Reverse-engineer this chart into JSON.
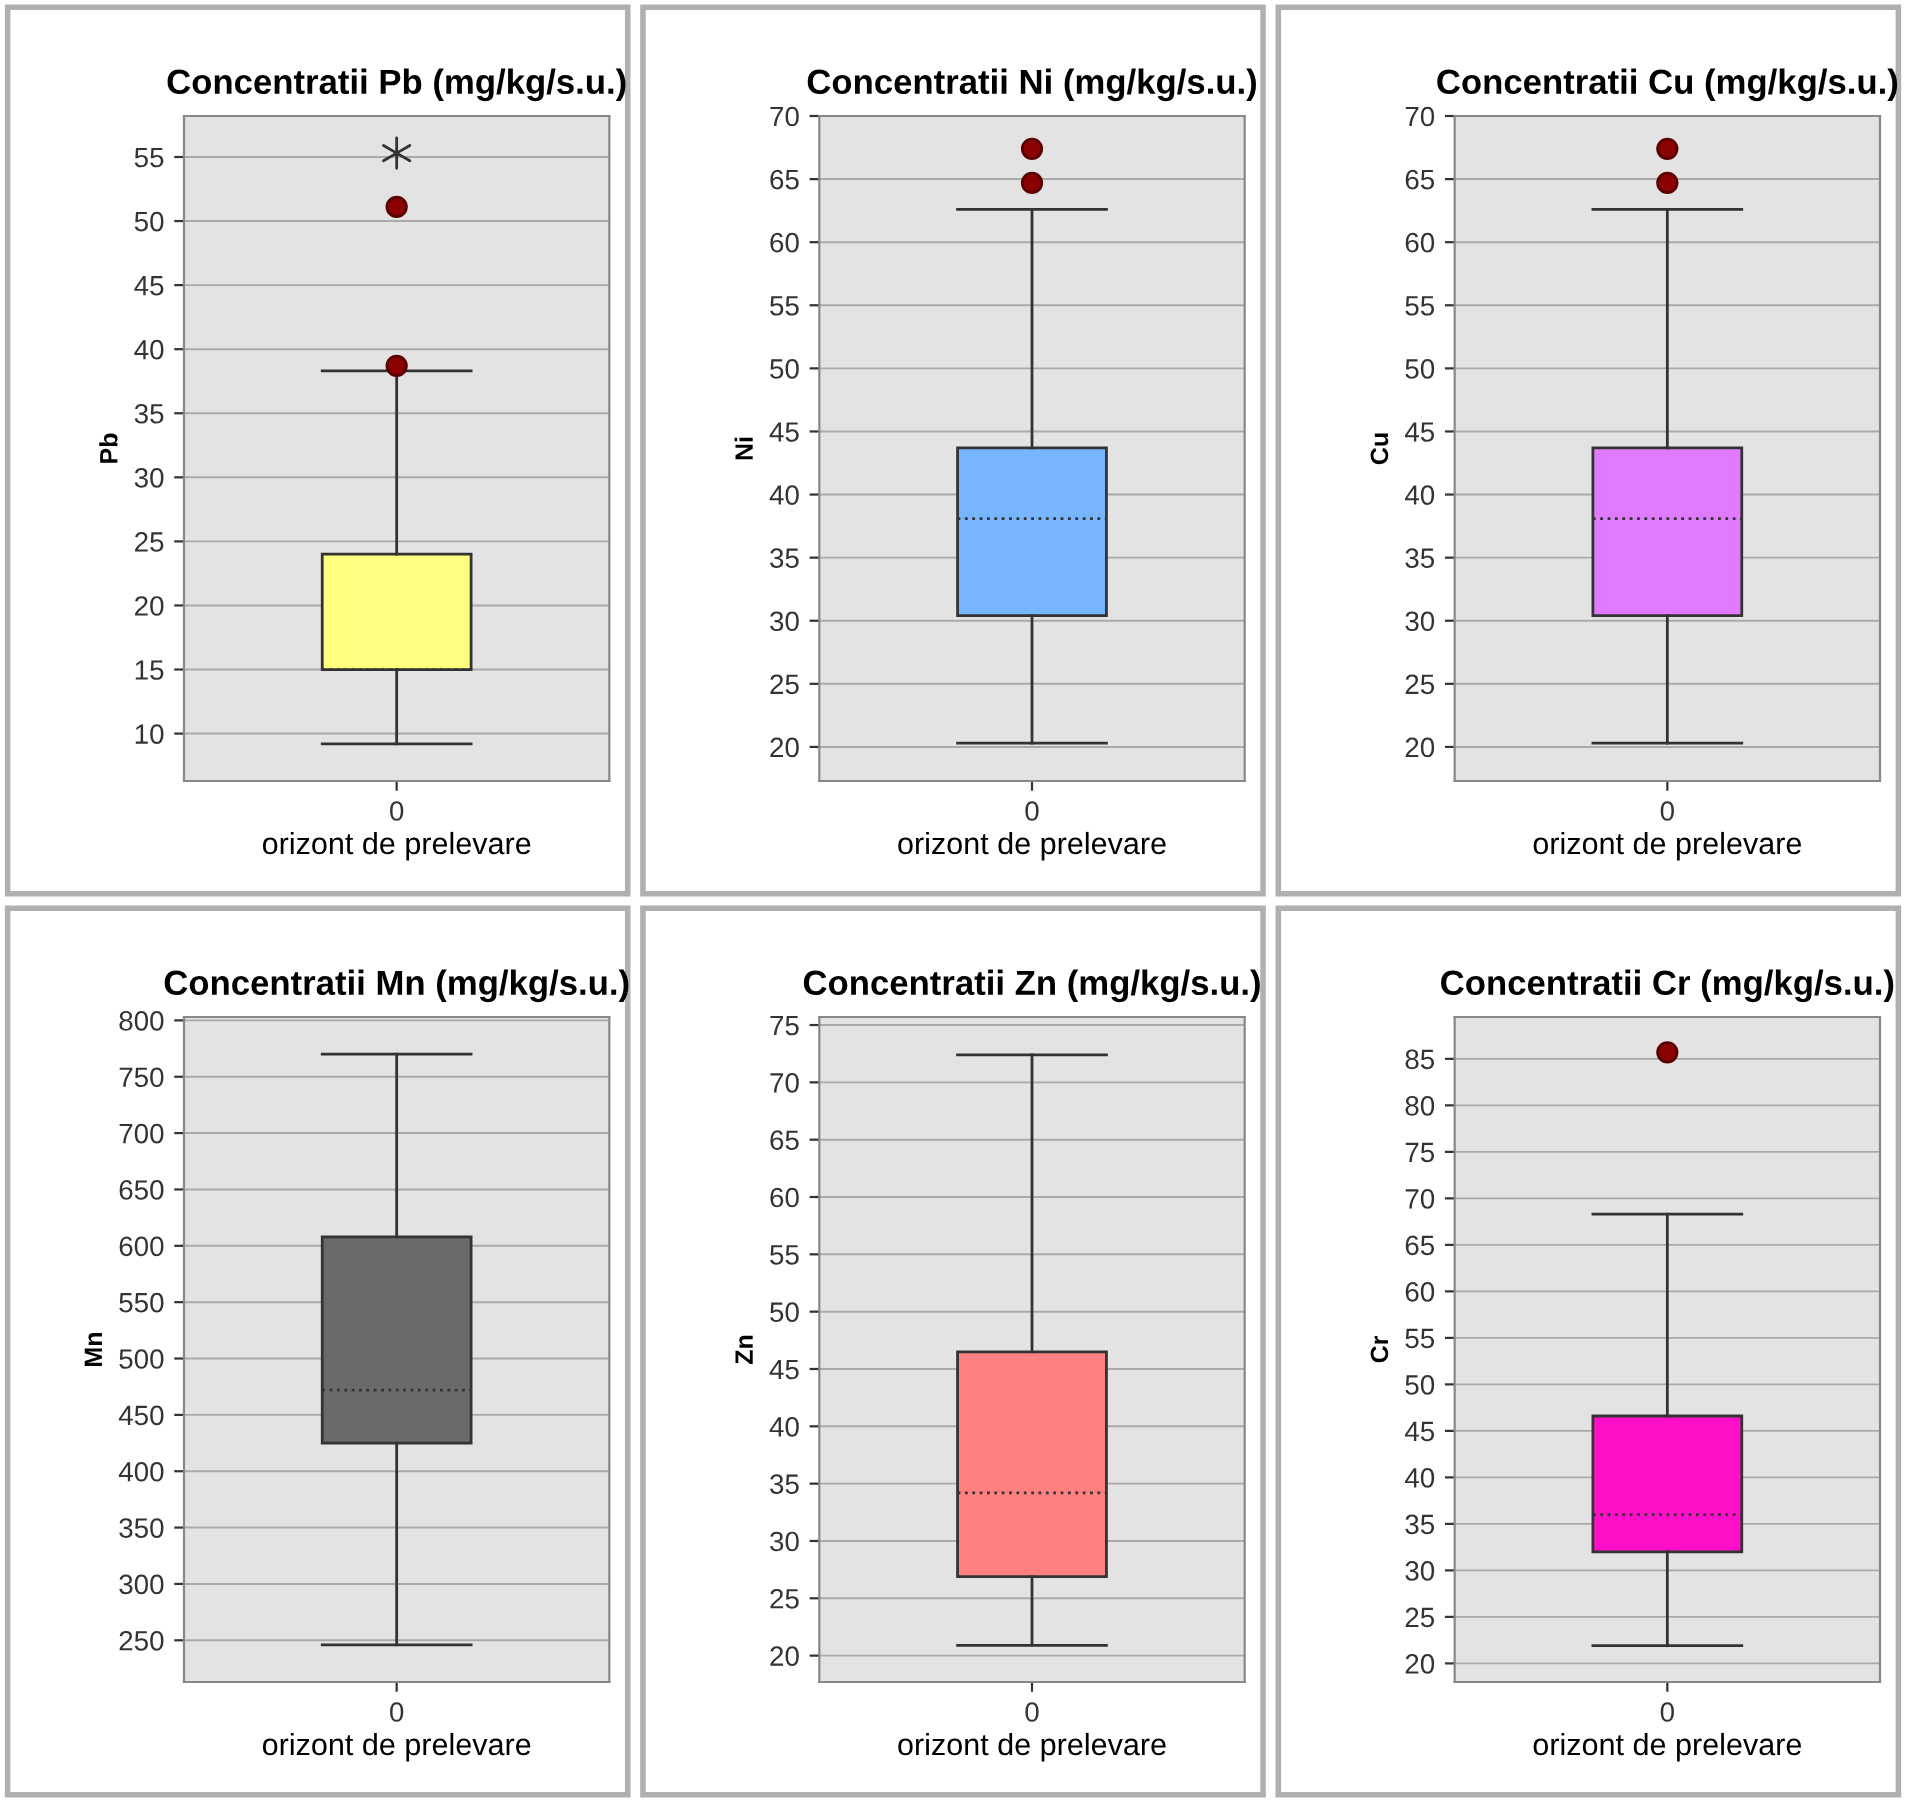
{
  "chart_data": [
    {
      "type": "box",
      "title": "Concentratii Pb (mg/kg/s.u.)",
      "xlabel": "orizont de prelevare",
      "ylabel": "Pb",
      "categories": [
        "0"
      ],
      "ylim": [
        6.3,
        58.2
      ],
      "yticks": [
        10,
        15,
        20,
        25,
        30,
        35,
        40,
        45,
        50,
        55
      ],
      "grid": "y",
      "series": [
        {
          "type": "box",
          "color": "#ffff80",
          "boxes": [
            {
              "low": 9.2,
              "q1": 15,
              "median": 15,
              "q3": 24,
              "high": 38.3,
              "outliers": [
                38.7,
                51.1
              ]
            }
          ]
        },
        {
          "type": "scatter",
          "x": [
            "0"
          ],
          "values": [
            55.3
          ],
          "marker": "cross",
          "color": "#333333"
        }
      ]
    },
    {
      "type": "box",
      "title": "Concentratii Ni (mg/kg/s.u.)",
      "xlabel": "orizont de prelevare",
      "ylabel": "Ni",
      "categories": [
        "0"
      ],
      "ylim": [
        17.3,
        70
      ],
      "yticks": [
        20,
        25,
        30,
        35,
        40,
        45,
        50,
        55,
        60,
        65,
        70
      ],
      "grid": "y",
      "series": [
        {
          "type": "box",
          "color": "#77b5fe",
          "boxes": [
            {
              "low": 20.3,
              "q1": 30.4,
              "median": 38.1,
              "q3": 43.7,
              "high": 62.6,
              "outliers": [
                64.7,
                67.4
              ]
            }
          ]
        }
      ]
    },
    {
      "type": "box",
      "title": "Concentratii Cu (mg/kg/s.u.)",
      "xlabel": "orizont de prelevare",
      "ylabel": "Cu",
      "categories": [
        "0"
      ],
      "ylim": [
        17.3,
        70
      ],
      "yticks": [
        20,
        25,
        30,
        35,
        40,
        45,
        50,
        55,
        60,
        65,
        70
      ],
      "grid": "y",
      "series": [
        {
          "type": "box",
          "color": "#e07bff",
          "boxes": [
            {
              "low": 20.3,
              "q1": 30.4,
              "median": 38.1,
              "q3": 43.7,
              "high": 62.6,
              "outliers": [
                64.7,
                67.4
              ]
            }
          ]
        }
      ]
    },
    {
      "type": "box",
      "title": "Concentratii Mn (mg/kg/s.u.)",
      "xlabel": "orizont de prelevare",
      "ylabel": "Mn",
      "categories": [
        "0"
      ],
      "ylim": [
        213,
        803
      ],
      "yticks": [
        250,
        300,
        350,
        400,
        450,
        500,
        550,
        600,
        650,
        700,
        750,
        800
      ],
      "grid": "y",
      "series": [
        {
          "type": "box",
          "color": "#6a6a6a",
          "boxes": [
            {
              "low": 246,
              "q1": 425,
              "median": 472,
              "q3": 608,
              "high": 770
            }
          ]
        }
      ]
    },
    {
      "type": "box",
      "title": "Concentratii Zn (mg/kg/s.u.)",
      "xlabel": "orizont de prelevare",
      "ylabel": "Zn",
      "categories": [
        "0"
      ],
      "ylim": [
        17.7,
        75.7
      ],
      "yticks": [
        20,
        25,
        30,
        35,
        40,
        45,
        50,
        55,
        60,
        65,
        70,
        75
      ],
      "grid": "y",
      "series": [
        {
          "type": "box",
          "color": "#ff8080",
          "boxes": [
            {
              "low": 20.9,
              "q1": 26.9,
              "median": 34.2,
              "q3": 46.5,
              "high": 72.4
            }
          ]
        }
      ]
    },
    {
      "type": "box",
      "title": "Concentratii Cr (mg/kg/s.u.)",
      "xlabel": "orizont de prelevare",
      "ylabel": "Cr",
      "categories": [
        "0"
      ],
      "ylim": [
        18,
        89.5
      ],
      "yticks": [
        20,
        25,
        30,
        35,
        40,
        45,
        50,
        55,
        60,
        65,
        70,
        75,
        80,
        85
      ],
      "grid": "y",
      "series": [
        {
          "type": "box",
          "color": "#ff10c8",
          "boxes": [
            {
              "low": 21.9,
              "q1": 32.0,
              "median": 36.0,
              "q3": 46.6,
              "high": 68.3,
              "outliers": [
                85.7
              ]
            }
          ]
        }
      ]
    }
  ]
}
